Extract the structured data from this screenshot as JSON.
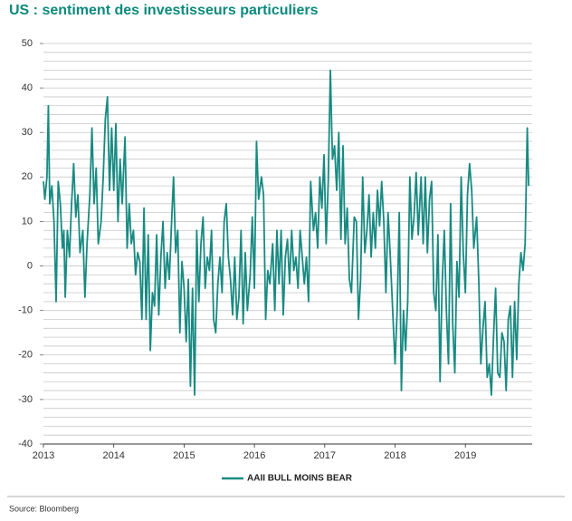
{
  "chart_data": {
    "type": "line",
    "title": "US : sentiment des investisseurs particuliers",
    "source": "Source: Bloomberg",
    "xlim": [
      2013,
      2019.95
    ],
    "xticks": [
      2013,
      2014,
      2015,
      2016,
      2017,
      2018,
      2019
    ],
    "ylim": [
      -40,
      50
    ],
    "yticks": [
      -40,
      -30,
      -20,
      -10,
      0,
      10,
      20,
      30,
      40,
      50
    ],
    "ygrid": [
      -38,
      -36,
      -34,
      -32,
      -30,
      -28,
      -26,
      -24,
      -22,
      -20,
      -18,
      -16,
      -14,
      -12,
      -10,
      -8,
      -6,
      -4,
      -2,
      0,
      2,
      4,
      6,
      8,
      10,
      12,
      14,
      16,
      18,
      20,
      22,
      24,
      26,
      28,
      30,
      32,
      34,
      36,
      38,
      40,
      42,
      44,
      46,
      48,
      50
    ],
    "grid": true,
    "legend": "bottom",
    "x": [
      2013.0,
      2013.02,
      2013.05,
      2013.07,
      2013.09,
      2013.12,
      2013.15,
      2013.18,
      2013.21,
      2013.24,
      2013.27,
      2013.29,
      2013.31,
      2013.34,
      2013.37,
      2013.4,
      2013.43,
      2013.46,
      2013.49,
      2013.52,
      2013.56,
      2013.59,
      2013.62,
      2013.66,
      2013.69,
      2013.72,
      2013.75,
      2013.78,
      2013.82,
      2013.85,
      2013.88,
      2013.91,
      2013.94,
      2013.97,
      2014.0,
      2014.03,
      2014.06,
      2014.09,
      2014.12,
      2014.16,
      2014.19,
      2014.22,
      2014.25,
      2014.28,
      2014.31,
      2014.34,
      2014.37,
      2014.4,
      2014.43,
      2014.46,
      2014.49,
      2014.52,
      2014.55,
      2014.58,
      2014.61,
      2014.64,
      2014.67,
      2014.7,
      2014.73,
      2014.76,
      2014.79,
      2014.82,
      2014.85,
      2014.88,
      2014.91,
      2014.94,
      2014.97,
      2015.0,
      2015.03,
      2015.06,
      2015.09,
      2015.12,
      2015.15,
      2015.18,
      2015.21,
      2015.24,
      2015.27,
      2015.3,
      2015.33,
      2015.36,
      2015.39,
      2015.42,
      2015.45,
      2015.48,
      2015.51,
      2015.54,
      2015.57,
      2015.6,
      2015.63,
      2015.66,
      2015.69,
      2015.72,
      2015.75,
      2015.78,
      2015.81,
      2015.84,
      2015.87,
      2015.9,
      2015.94,
      2015.97,
      2016.0,
      2016.03,
      2016.06,
      2016.1,
      2016.13,
      2016.16,
      2016.19,
      2016.22,
      2016.26,
      2016.29,
      2016.32,
      2016.35,
      2016.38,
      2016.41,
      2016.44,
      2016.47,
      2016.5,
      2016.53,
      2016.56,
      2016.59,
      2016.62,
      2016.65,
      2016.68,
      2016.71,
      2016.74,
      2016.77,
      2016.8,
      2016.84,
      2016.87,
      2016.9,
      2016.93,
      2016.96,
      2016.99,
      2017.02,
      2017.05,
      2017.08,
      2017.11,
      2017.14,
      2017.17,
      2017.2,
      2017.23,
      2017.26,
      2017.29,
      2017.32,
      2017.35,
      2017.38,
      2017.42,
      2017.45,
      2017.48,
      2017.51,
      2017.54,
      2017.57,
      2017.6,
      2017.63,
      2017.66,
      2017.69,
      2017.72,
      2017.75,
      2017.78,
      2017.81,
      2017.84,
      2017.87,
      2017.9,
      2017.93,
      2018.0,
      2018.03,
      2018.06,
      2018.09,
      2018.12,
      2018.15,
      2018.18,
      2018.21,
      2018.24,
      2018.27,
      2018.3,
      2018.33,
      2018.37,
      2018.4,
      2018.43,
      2018.46,
      2018.49,
      2018.52,
      2018.55,
      2018.58,
      2018.61,
      2018.64,
      2018.67,
      2018.7,
      2018.73,
      2018.76,
      2018.79,
      2018.82,
      2018.85,
      2018.88,
      2018.91,
      2018.94,
      2018.97,
      2019.0,
      2019.03,
      2019.06,
      2019.09,
      2019.12,
      2019.16,
      2019.19,
      2019.22,
      2019.25,
      2019.28,
      2019.31,
      2019.34,
      2019.37,
      2019.4,
      2019.43,
      2019.46,
      2019.49,
      2019.52,
      2019.55,
      2019.58,
      2019.61,
      2019.64,
      2019.67,
      2019.7,
      2019.73,
      2019.76,
      2019.79,
      2019.82,
      2019.85,
      2019.88,
      2019.9
    ],
    "series": [
      {
        "name": "AAII BULL MOINS BEAR",
        "color": "#178a82",
        "values": [
          19,
          15,
          20,
          36,
          14,
          18,
          10,
          -8,
          19,
          14,
          4,
          8,
          -7,
          8,
          2,
          14,
          23,
          11,
          16,
          3,
          8,
          -7,
          5,
          16,
          31,
          14,
          22,
          5,
          10,
          20,
          33,
          38,
          17,
          31,
          17,
          32,
          10,
          24,
          14,
          29,
          4,
          14,
          5,
          8,
          -2,
          3,
          1,
          -12,
          13,
          -12,
          7,
          -19,
          -6,
          -9,
          7,
          -11,
          2,
          10,
          -5,
          3,
          -3,
          9,
          20,
          3,
          8,
          -15,
          1,
          -5,
          -17,
          -3,
          -27,
          -5,
          -29,
          8,
          -8,
          5,
          11,
          -5,
          2,
          -1,
          8,
          -12,
          -15,
          -4,
          2,
          -6,
          10,
          14,
          2,
          -3,
          -11,
          2,
          -12,
          -7,
          8,
          -13,
          3,
          -10,
          -2,
          11,
          -5,
          28,
          15,
          20,
          16,
          -12,
          -1,
          -4,
          5,
          -10,
          8,
          -4,
          8,
          -11,
          2,
          6,
          -4,
          8,
          -1,
          2,
          -5,
          8,
          2,
          -4,
          2,
          -8,
          19,
          8,
          12,
          4,
          20,
          13,
          25,
          5,
          19,
          44,
          24,
          27,
          17,
          30,
          6,
          27,
          5,
          13,
          -3,
          -6,
          11,
          10,
          -12,
          -3,
          20,
          3,
          8,
          16,
          2,
          12,
          4,
          17,
          9,
          19,
          10,
          -6,
          12,
          3,
          -22,
          -10,
          12,
          -28,
          -10,
          -19,
          -8,
          20,
          6,
          11,
          21,
          7,
          20,
          5,
          20,
          3,
          15,
          19,
          -6,
          -10,
          7,
          -26,
          -4,
          8,
          -10,
          -22,
          14,
          -13,
          -24,
          1,
          -7,
          20,
          3,
          -6,
          16,
          23,
          17,
          4,
          11,
          -3,
          -22,
          -14,
          -8,
          -25,
          -22,
          -29,
          -16,
          -5,
          -24,
          -25,
          -15,
          -17,
          -28,
          -12,
          -9,
          -25,
          -8,
          -21,
          -4,
          3,
          -1,
          5,
          31,
          18
        ]
      }
    ]
  }
}
